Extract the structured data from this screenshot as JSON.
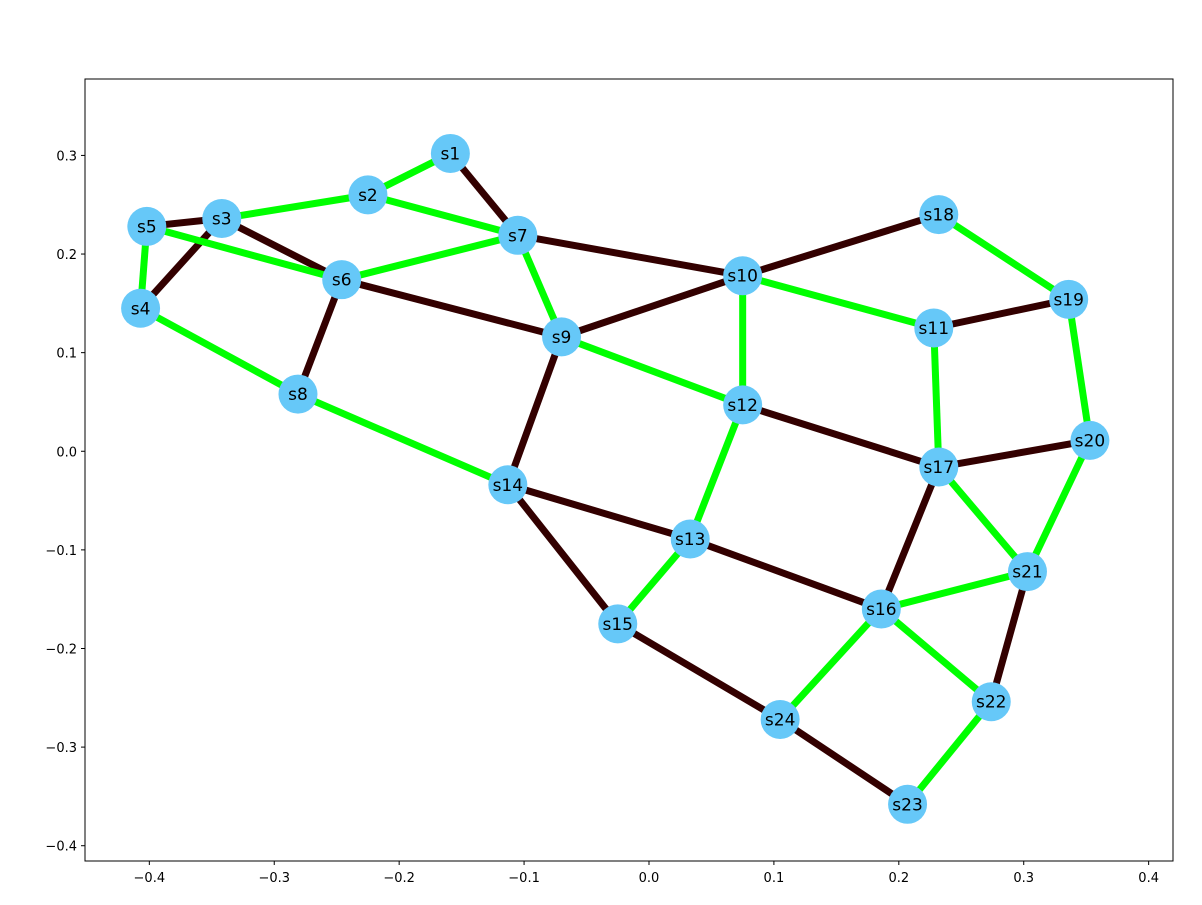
{
  "colors": {
    "edge_green": "#00ff00",
    "edge_dark": "#330000",
    "node_fill": "#66c8f8",
    "axis": "#000000"
  },
  "chart_data": {
    "type": "network",
    "xlim": [
      -0.4515,
      0.4195
    ],
    "ylim": [
      -0.4155,
      0.3775
    ],
    "xticks": [
      "−0.4",
      "−0.3",
      "−0.2",
      "−0.1",
      "0.0",
      "0.1",
      "0.2",
      "0.3",
      "0.4"
    ],
    "xtick_values": [
      -0.4,
      -0.3,
      -0.2,
      -0.1,
      0.0,
      0.1,
      0.2,
      0.3,
      0.4
    ],
    "yticks": [
      "0.3",
      "0.2",
      "0.1",
      "0.0",
      "−0.1",
      "−0.2",
      "−0.3",
      "−0.4"
    ],
    "ytick_values": [
      0.3,
      0.2,
      0.1,
      0.0,
      -0.1,
      -0.2,
      -0.3,
      -0.4
    ],
    "nodes": [
      {
        "id": "s1",
        "x": -0.159,
        "y": 0.302
      },
      {
        "id": "s2",
        "x": -0.225,
        "y": 0.26
      },
      {
        "id": "s3",
        "x": -0.342,
        "y": 0.236
      },
      {
        "id": "s4",
        "x": -0.407,
        "y": 0.145
      },
      {
        "id": "s5",
        "x": -0.402,
        "y": 0.228
      },
      {
        "id": "s6",
        "x": -0.246,
        "y": 0.174
      },
      {
        "id": "s7",
        "x": -0.105,
        "y": 0.219
      },
      {
        "id": "s8",
        "x": -0.281,
        "y": 0.058
      },
      {
        "id": "s9",
        "x": -0.07,
        "y": 0.116
      },
      {
        "id": "s10",
        "x": 0.075,
        "y": 0.178
      },
      {
        "id": "s11",
        "x": 0.228,
        "y": 0.125
      },
      {
        "id": "s12",
        "x": 0.075,
        "y": 0.047
      },
      {
        "id": "s13",
        "x": 0.033,
        "y": -0.089
      },
      {
        "id": "s14",
        "x": -0.113,
        "y": -0.034
      },
      {
        "id": "s15",
        "x": -0.025,
        "y": -0.175
      },
      {
        "id": "s16",
        "x": 0.186,
        "y": -0.16
      },
      {
        "id": "s17",
        "x": 0.232,
        "y": -0.016
      },
      {
        "id": "s18",
        "x": 0.232,
        "y": 0.24
      },
      {
        "id": "s19",
        "x": 0.336,
        "y": 0.154
      },
      {
        "id": "s20",
        "x": 0.353,
        "y": 0.011
      },
      {
        "id": "s21",
        "x": 0.303,
        "y": -0.122
      },
      {
        "id": "s22",
        "x": 0.274,
        "y": -0.254
      },
      {
        "id": "s23",
        "x": 0.207,
        "y": -0.358
      },
      {
        "id": "s24",
        "x": 0.105,
        "y": -0.272
      }
    ],
    "edges": [
      {
        "from": "s1",
        "to": "s2",
        "color": "green"
      },
      {
        "from": "s1",
        "to": "s7",
        "color": "dark"
      },
      {
        "from": "s2",
        "to": "s3",
        "color": "green"
      },
      {
        "from": "s2",
        "to": "s7",
        "color": "green"
      },
      {
        "from": "s3",
        "to": "s5",
        "color": "dark"
      },
      {
        "from": "s3",
        "to": "s4",
        "color": "dark"
      },
      {
        "from": "s3",
        "to": "s6",
        "color": "dark"
      },
      {
        "from": "s5",
        "to": "s4",
        "color": "green"
      },
      {
        "from": "s5",
        "to": "s6",
        "color": "green"
      },
      {
        "from": "s4",
        "to": "s8",
        "color": "green"
      },
      {
        "from": "s6",
        "to": "s7",
        "color": "green"
      },
      {
        "from": "s6",
        "to": "s8",
        "color": "dark"
      },
      {
        "from": "s6",
        "to": "s9",
        "color": "dark"
      },
      {
        "from": "s7",
        "to": "s10",
        "color": "dark"
      },
      {
        "from": "s7",
        "to": "s9",
        "color": "green"
      },
      {
        "from": "s8",
        "to": "s14",
        "color": "green"
      },
      {
        "from": "s9",
        "to": "s10",
        "color": "dark"
      },
      {
        "from": "s9",
        "to": "s12",
        "color": "green"
      },
      {
        "from": "s9",
        "to": "s14",
        "color": "dark"
      },
      {
        "from": "s10",
        "to": "s18",
        "color": "dark"
      },
      {
        "from": "s10",
        "to": "s11",
        "color": "green"
      },
      {
        "from": "s10",
        "to": "s12",
        "color": "green"
      },
      {
        "from": "s11",
        "to": "s19",
        "color": "dark"
      },
      {
        "from": "s11",
        "to": "s17",
        "color": "green"
      },
      {
        "from": "s12",
        "to": "s17",
        "color": "dark"
      },
      {
        "from": "s12",
        "to": "s13",
        "color": "green"
      },
      {
        "from": "s14",
        "to": "s13",
        "color": "dark"
      },
      {
        "from": "s14",
        "to": "s15",
        "color": "dark"
      },
      {
        "from": "s13",
        "to": "s15",
        "color": "green"
      },
      {
        "from": "s13",
        "to": "s16",
        "color": "dark"
      },
      {
        "from": "s15",
        "to": "s24",
        "color": "dark"
      },
      {
        "from": "s17",
        "to": "s20",
        "color": "dark"
      },
      {
        "from": "s17",
        "to": "s21",
        "color": "green"
      },
      {
        "from": "s17",
        "to": "s16",
        "color": "dark"
      },
      {
        "from": "s18",
        "to": "s19",
        "color": "green"
      },
      {
        "from": "s19",
        "to": "s20",
        "color": "green"
      },
      {
        "from": "s20",
        "to": "s21",
        "color": "green"
      },
      {
        "from": "s16",
        "to": "s21",
        "color": "green"
      },
      {
        "from": "s16",
        "to": "s24",
        "color": "green"
      },
      {
        "from": "s16",
        "to": "s22",
        "color": "green"
      },
      {
        "from": "s21",
        "to": "s22",
        "color": "dark"
      },
      {
        "from": "s22",
        "to": "s23",
        "color": "green"
      },
      {
        "from": "s24",
        "to": "s23",
        "color": "dark"
      }
    ]
  }
}
